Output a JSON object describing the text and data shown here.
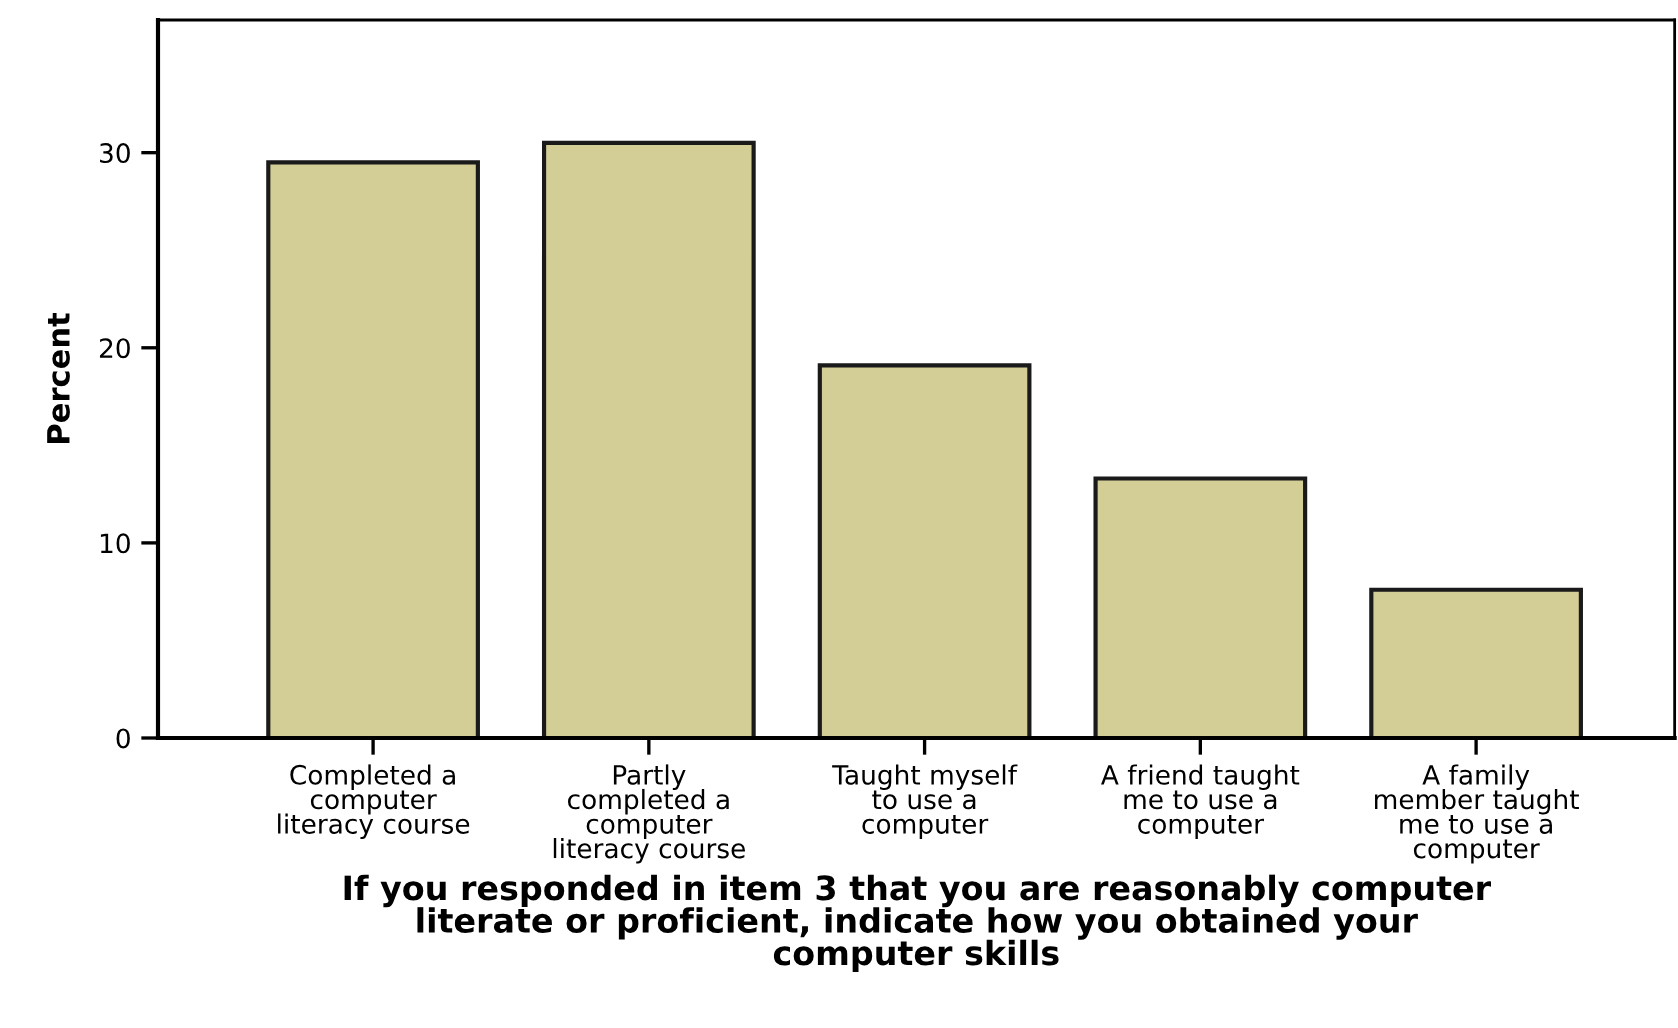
{
  "chart_data": {
    "type": "bar",
    "xlabel": "If you responded in item 3 that you are reasonably computer\nliterate or proficient, indicate how you obtained your\ncomputer skills",
    "ylabel": "Percent",
    "categories": [
      "Completed a\ncomputer\nliteracy course",
      "Partly\ncompleted a\ncomputer\nliteracy course",
      "Taught myself\nto use a\ncomputer",
      "A friend taught\nme to use a\ncomputer",
      "A family\nmember taught\nme to use a\ncomputer"
    ],
    "values": [
      29.5,
      30.5,
      19.1,
      13.3,
      7.6
    ],
    "color": "#d3cd96",
    "ylim": [
      0,
      36.8
    ],
    "yticks": [
      0,
      10,
      20,
      30
    ],
    "grid": false
  }
}
